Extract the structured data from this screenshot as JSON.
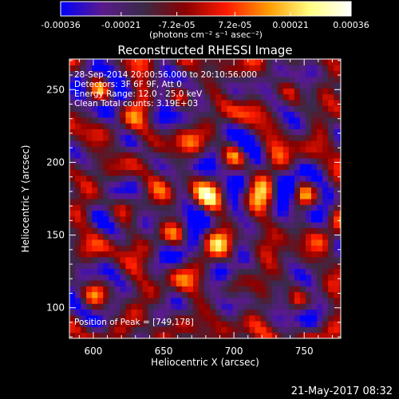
{
  "chart_data": {
    "type": "heatmap",
    "title": "Reconstructed RHESSI Image",
    "xlabel": "Heliocentric X (arcsec)",
    "ylabel": "Heliocentric Y (arcsec)",
    "xlim": [
      583,
      776
    ],
    "ylim": [
      79,
      271
    ],
    "x_ticks": [
      600,
      650,
      700,
      750
    ],
    "y_ticks": [
      100,
      150,
      200,
      250
    ],
    "x_minor_step": 10,
    "y_minor_step": 10,
    "colorbar": {
      "range": [
        -0.00036,
        0.00036
      ],
      "tick_values": [
        -0.00036,
        -0.00021,
        -7.2e-05,
        7.2e-05,
        0.00021,
        0.00036
      ],
      "tick_labels": [
        "-0.00036",
        "-0.00021",
        "-7.2e-05",
        "7.2e-05",
        "0.00021",
        "0.00036"
      ],
      "unit_label": "(photons cm⁻² s⁻¹ asec⁻²)",
      "colors": [
        "#0000ff",
        "#5a1a8c",
        "#3a2a48",
        "#8a0000",
        "#ff1a00",
        "#ff9a00",
        "#ffff80",
        "#ffffff"
      ]
    },
    "peak": [
      749,
      178
    ],
    "pixel_size_arcsec": 4,
    "annotations": [
      "28-Sep-2014 20:00:56.000 to 20:10:56.000",
      "Detectors: 3F 6F 9F, Att 0",
      "Energy Range: 12.0 - 25.0 keV",
      "Clean     Total counts: 3.19E+03",
      "Position of Peak = [749,178]"
    ],
    "rings": [
      {
        "x": 749,
        "y": 178,
        "amplitude": 1.0
      },
      {
        "x": 605,
        "y": 250,
        "amplitude": 0.75
      },
      {
        "x": 660,
        "y": 245,
        "amplitude": 0.7
      },
      {
        "x": 620,
        "y": 170,
        "amplitude": 0.6
      },
      {
        "x": 660,
        "y": 150,
        "amplitude": 0.65
      },
      {
        "x": 700,
        "y": 205,
        "amplitude": 0.7
      },
      {
        "x": 745,
        "y": 105,
        "amplitude": 0.8
      },
      {
        "x": 700,
        "y": 115,
        "amplitude": 0.6
      },
      {
        "x": 600,
        "y": 110,
        "amplitude": 0.5
      },
      {
        "x": 740,
        "y": 250,
        "amplitude": 0.6
      }
    ]
  },
  "timestamp": "21-May-2017 08:32"
}
